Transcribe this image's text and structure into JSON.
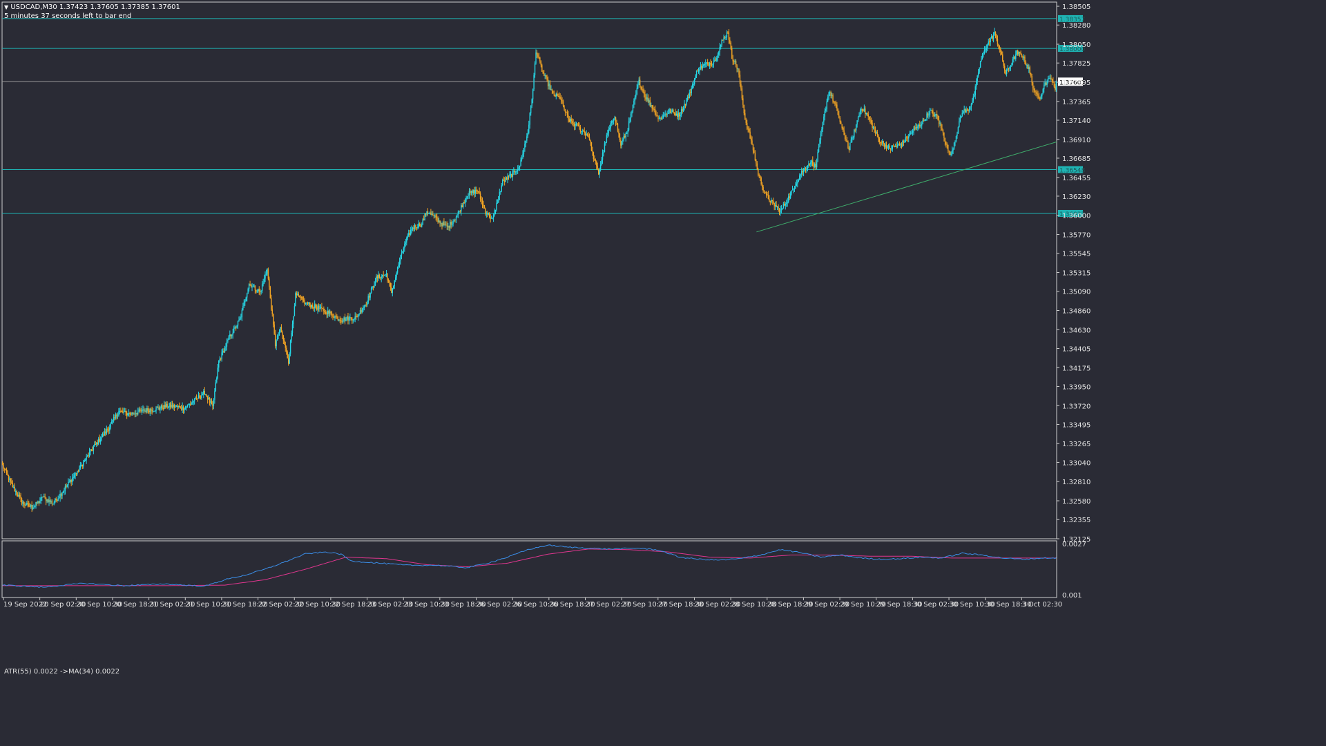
{
  "header": {
    "symbol_line": "USDCAD,M30  1.37423 1.37605 1.37385 1.37601",
    "timer": "5 minutes 37 seconds left to bar end",
    "indicator": "ATR(55) 0.0022  ->MA(34) 0.0022"
  },
  "colors": {
    "background": "#2a2b35",
    "bull": "#26d7e6",
    "bear": "#f5a623",
    "level": "#1fb3b3",
    "trendline": "#3fae6c",
    "current_price_line": "#9a9a9a",
    "atr": "#3b8ee8",
    "ma": "#e0368f",
    "grid_text": "#e0e0e0"
  },
  "chart_data": [
    {
      "type": "candlestick",
      "symbol": "USDCAD",
      "timeframe": "M30",
      "ylim": [
        1.32125,
        1.38555
      ],
      "y_ticks": [
        "1.38505",
        "1.38280",
        "1.38050",
        "1.37825",
        "1.37595",
        "1.37365",
        "1.37140",
        "1.36910",
        "1.36685",
        "1.36455",
        "1.36230",
        "1.36000",
        "1.35770",
        "1.35545",
        "1.35315",
        "1.35090",
        "1.34860",
        "1.34630",
        "1.34405",
        "1.34175",
        "1.33950",
        "1.33720",
        "1.33495",
        "1.33265",
        "1.33040",
        "1.32810",
        "1.32580",
        "1.32355",
        "1.32125"
      ],
      "x_labels": [
        "19 Sep 2022",
        "20 Sep 02:30",
        "20 Sep 10:30",
        "20 Sep 18:30",
        "21 Sep 02:30",
        "21 Sep 10:30",
        "21 Sep 18:30",
        "22 Sep 02:30",
        "22 Sep 10:30",
        "22 Sep 18:30",
        "23 Sep 02:30",
        "23 Sep 10:30",
        "23 Sep 18:30",
        "26 Sep 02:30",
        "26 Sep 10:30",
        "26 Sep 18:30",
        "27 Sep 02:30",
        "27 Sep 10:30",
        "27 Sep 18:30",
        "28 Sep 02:30",
        "28 Sep 10:30",
        "28 Sep 18:30",
        "29 Sep 02:30",
        "29 Sep 10:30",
        "29 Sep 18:30",
        "30 Sep 02:30",
        "30 Sep 10:30",
        "30 Sep 18:30",
        "3 Oct 02:30"
      ],
      "anchors": [
        [
          0,
          1.33
        ],
        [
          10,
          1.3275
        ],
        [
          20,
          1.3255
        ],
        [
          30,
          1.325
        ],
        [
          40,
          1.3262
        ],
        [
          50,
          1.3255
        ],
        [
          60,
          1.327
        ],
        [
          75,
          1.3295
        ],
        [
          90,
          1.3322
        ],
        [
          105,
          1.3345
        ],
        [
          115,
          1.3365
        ],
        [
          125,
          1.3362
        ],
        [
          140,
          1.3366
        ],
        [
          155,
          1.3369
        ],
        [
          165,
          1.3372
        ],
        [
          180,
          1.3369
        ],
        [
          190,
          1.3378
        ],
        [
          200,
          1.3388
        ],
        [
          208,
          1.337
        ],
        [
          214,
          1.3425
        ],
        [
          225,
          1.3455
        ],
        [
          235,
          1.3475
        ],
        [
          244,
          1.3518
        ],
        [
          255,
          1.3508
        ],
        [
          262,
          1.3535
        ],
        [
          270,
          1.3445
        ],
        [
          275,
          1.3465
        ],
        [
          283,
          1.3425
        ],
        [
          290,
          1.3505
        ],
        [
          300,
          1.3495
        ],
        [
          310,
          1.349
        ],
        [
          320,
          1.3485
        ],
        [
          335,
          1.3475
        ],
        [
          350,
          1.3478
        ],
        [
          360,
          1.3495
        ],
        [
          370,
          1.3525
        ],
        [
          380,
          1.353
        ],
        [
          385,
          1.3508
        ],
        [
          395,
          1.3555
        ],
        [
          405,
          1.3585
        ],
        [
          415,
          1.359
        ],
        [
          420,
          1.3605
        ],
        [
          430,
          1.3595
        ],
        [
          440,
          1.3585
        ],
        [
          450,
          1.36
        ],
        [
          460,
          1.3625
        ],
        [
          470,
          1.363
        ],
        [
          478,
          1.3605
        ],
        [
          485,
          1.3595
        ],
        [
          495,
          1.364
        ],
        [
          505,
          1.365
        ],
        [
          512,
          1.366
        ],
        [
          520,
          1.37
        ],
        [
          525,
          1.375
        ],
        [
          528,
          1.3798
        ],
        [
          535,
          1.377
        ],
        [
          545,
          1.3745
        ],
        [
          552,
          1.374
        ],
        [
          560,
          1.3715
        ],
        [
          570,
          1.3705
        ],
        [
          580,
          1.3695
        ],
        [
          585,
          1.367
        ],
        [
          590,
          1.365
        ],
        [
          598,
          1.3695
        ],
        [
          606,
          1.372
        ],
        [
          612,
          1.3685
        ],
        [
          618,
          1.37
        ],
        [
          625,
          1.3735
        ],
        [
          630,
          1.376
        ],
        [
          635,
          1.3745
        ],
        [
          643,
          1.373
        ],
        [
          650,
          1.3715
        ],
        [
          660,
          1.3725
        ],
        [
          670,
          1.372
        ],
        [
          680,
          1.3745
        ],
        [
          688,
          1.3775
        ],
        [
          695,
          1.378
        ],
        [
          705,
          1.3785
        ],
        [
          712,
          1.3808
        ],
        [
          718,
          1.382
        ],
        [
          722,
          1.379
        ],
        [
          728,
          1.3775
        ],
        [
          735,
          1.3715
        ],
        [
          742,
          1.3685
        ],
        [
          748,
          1.365
        ],
        [
          755,
          1.3625
        ],
        [
          762,
          1.3615
        ],
        [
          770,
          1.3605
        ],
        [
          780,
          1.3625
        ],
        [
          790,
          1.365
        ],
        [
          800,
          1.3665
        ],
        [
          805,
          1.3658
        ],
        [
          812,
          1.371
        ],
        [
          818,
          1.375
        ],
        [
          825,
          1.373
        ],
        [
          832,
          1.37
        ],
        [
          838,
          1.368
        ],
        [
          843,
          1.37
        ],
        [
          850,
          1.373
        ],
        [
          856,
          1.372
        ],
        [
          862,
          1.3705
        ],
        [
          868,
          1.369
        ],
        [
          878,
          1.368
        ],
        [
          890,
          1.3685
        ],
        [
          900,
          1.37
        ],
        [
          910,
          1.371
        ],
        [
          918,
          1.3725
        ],
        [
          925,
          1.3718
        ],
        [
          932,
          1.3695
        ],
        [
          938,
          1.367
        ],
        [
          945,
          1.37
        ],
        [
          950,
          1.3725
        ],
        [
          956,
          1.3725
        ],
        [
          962,
          1.3745
        ],
        [
          968,
          1.3785
        ],
        [
          975,
          1.3805
        ],
        [
          982,
          1.3818
        ],
        [
          987,
          1.38
        ],
        [
          993,
          1.377
        ],
        [
          998,
          1.378
        ],
        [
          1004,
          1.3795
        ],
        [
          1010,
          1.379
        ],
        [
          1016,
          1.3775
        ],
        [
          1022,
          1.3745
        ],
        [
          1027,
          1.3742
        ],
        [
          1032,
          1.3758
        ],
        [
          1038,
          1.3765
        ],
        [
          1043,
          1.3745
        ]
      ],
      "levels": [
        1.38357,
        1.38,
        1.36548,
        1.36023
      ],
      "current_price": 1.37601,
      "trendline": [
        [
          1.359,
          1.3688
        ]
      ]
    },
    {
      "type": "line",
      "name": "ATR(55)",
      "ylim": [
        0.001,
        0.0027
      ],
      "y_ticks": [
        "0.0027",
        "0.001"
      ],
      "atr": [
        [
          0,
          0.00132
        ],
        [
          40,
          0.00125
        ],
        [
          80,
          0.00138
        ],
        [
          120,
          0.0013
        ],
        [
          160,
          0.00136
        ],
        [
          200,
          0.00128
        ],
        [
          220,
          0.0015
        ],
        [
          240,
          0.00165
        ],
        [
          260,
          0.00185
        ],
        [
          280,
          0.0021
        ],
        [
          300,
          0.00236
        ],
        [
          320,
          0.00242
        ],
        [
          335,
          0.00235
        ],
        [
          345,
          0.00212
        ],
        [
          370,
          0.00206
        ],
        [
          400,
          0.00198
        ],
        [
          430,
          0.00198
        ],
        [
          460,
          0.0019
        ],
        [
          480,
          0.00205
        ],
        [
          500,
          0.00225
        ],
        [
          520,
          0.0025
        ],
        [
          540,
          0.00265
        ],
        [
          560,
          0.00258
        ],
        [
          580,
          0.00255
        ],
        [
          600,
          0.00252
        ],
        [
          630,
          0.00255
        ],
        [
          650,
          0.00248
        ],
        [
          670,
          0.00225
        ],
        [
          690,
          0.00218
        ],
        [
          710,
          0.00215
        ],
        [
          730,
          0.0022
        ],
        [
          750,
          0.00232
        ],
        [
          770,
          0.0025
        ],
        [
          790,
          0.0024
        ],
        [
          810,
          0.00225
        ],
        [
          830,
          0.00232
        ],
        [
          850,
          0.00222
        ],
        [
          870,
          0.00218
        ],
        [
          890,
          0.0022
        ],
        [
          910,
          0.00225
        ],
        [
          930,
          0.00222
        ],
        [
          950,
          0.00238
        ],
        [
          970,
          0.00232
        ],
        [
          990,
          0.00222
        ],
        [
          1010,
          0.00218
        ],
        [
          1030,
          0.00222
        ],
        [
          1043,
          0.00222
        ]
      ],
      "ma": [
        [
          0,
          0.0013
        ],
        [
          80,
          0.0013
        ],
        [
          160,
          0.0013
        ],
        [
          220,
          0.00132
        ],
        [
          260,
          0.0015
        ],
        [
          300,
          0.00185
        ],
        [
          340,
          0.00225
        ],
        [
          380,
          0.0022
        ],
        [
          420,
          0.002
        ],
        [
          460,
          0.00193
        ],
        [
          500,
          0.00205
        ],
        [
          540,
          0.00235
        ],
        [
          580,
          0.00252
        ],
        [
          620,
          0.0025
        ],
        [
          660,
          0.00242
        ],
        [
          700,
          0.00225
        ],
        [
          740,
          0.00222
        ],
        [
          780,
          0.00232
        ],
        [
          820,
          0.00232
        ],
        [
          860,
          0.00228
        ],
        [
          900,
          0.00228
        ],
        [
          940,
          0.00222
        ],
        [
          980,
          0.00222
        ],
        [
          1020,
          0.00222
        ],
        [
          1043,
          0.00222
        ]
      ]
    }
  ]
}
